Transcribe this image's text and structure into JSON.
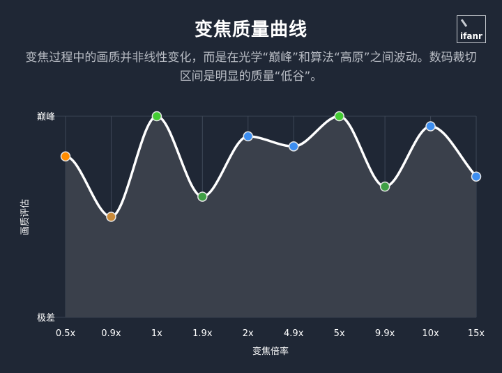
{
  "title": "变焦质量曲线",
  "subtitle": "变焦过程中的画质并非线性变化，而是在光学“巅峰”和算法“高原”之间波动。数码裁切区间是明显的质量“低谷”。",
  "logo": "ifanr",
  "chart_data": {
    "type": "line",
    "title": "变焦质量曲线",
    "xlabel": "变焦倍率",
    "ylabel": "画质评估",
    "categories": [
      "0.5x",
      "0.9x",
      "1x",
      "1.9x",
      "2x",
      "4.9x",
      "5x",
      "9.9x",
      "10x",
      "15x"
    ],
    "values": [
      80,
      50,
      100,
      60,
      90,
      85,
      100,
      65,
      95,
      70
    ],
    "point_colors": [
      "#ff8c00",
      "#c98a3a",
      "#44cc33",
      "#3f9f45",
      "#3d8ef0",
      "#3d8ef0",
      "#44cc33",
      "#3f9f45",
      "#3d8ef0",
      "#3d8ef0"
    ],
    "ylim": [
      0,
      100
    ],
    "y_tick_labels": {
      "top": "巅峰",
      "bottom": "极差"
    },
    "grid": "vertical",
    "smooth": true,
    "area_fill": true
  }
}
